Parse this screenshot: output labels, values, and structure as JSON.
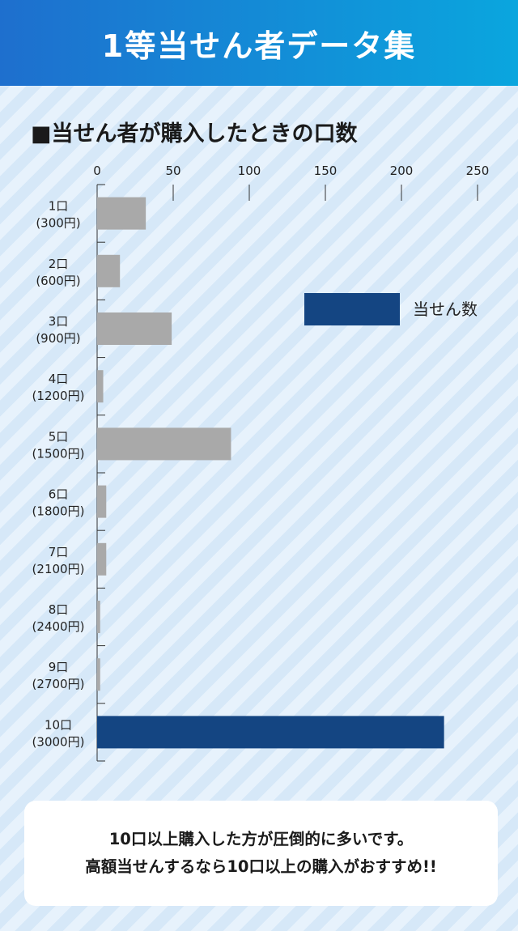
{
  "header": {
    "title": "1等当せん者データ集"
  },
  "chart_title": "■当せん者が購入したときの口数",
  "chart_data": {
    "type": "bar",
    "orientation": "horizontal",
    "title": "■当せん者が購入したときの口数",
    "categories": [
      [
        "1口",
        "(300円)"
      ],
      [
        "2口",
        "(600円)"
      ],
      [
        "3口",
        "(900円)"
      ],
      [
        "4口",
        "(1200円)"
      ],
      [
        "5口",
        "(1500円)"
      ],
      [
        "6口",
        "(1800円)"
      ],
      [
        "7口",
        "(2100円)"
      ],
      [
        "8口",
        "(2400円)"
      ],
      [
        "9口",
        "(2700円)"
      ],
      [
        "10口",
        "(3000円)"
      ]
    ],
    "series": [
      {
        "name": "当せん数",
        "values": [
          32,
          15,
          49,
          4,
          88,
          6,
          6,
          2,
          2,
          228
        ]
      }
    ],
    "highlight_index": 9,
    "colors": {
      "default": "#a9a9a9",
      "highlight": "#144582"
    },
    "xlim": [
      0,
      250
    ],
    "xticks": [
      0,
      50,
      100,
      150,
      200,
      250
    ],
    "axis_position": "top",
    "legend": {
      "placement": "right",
      "label": "当せん数",
      "color": "#144582"
    },
    "grid": false
  },
  "note": {
    "line1": "10口以上購入した方が圧倒的に多いです。",
    "line2": "高額当せんするなら10口以上の購入がおすすめ!!"
  }
}
